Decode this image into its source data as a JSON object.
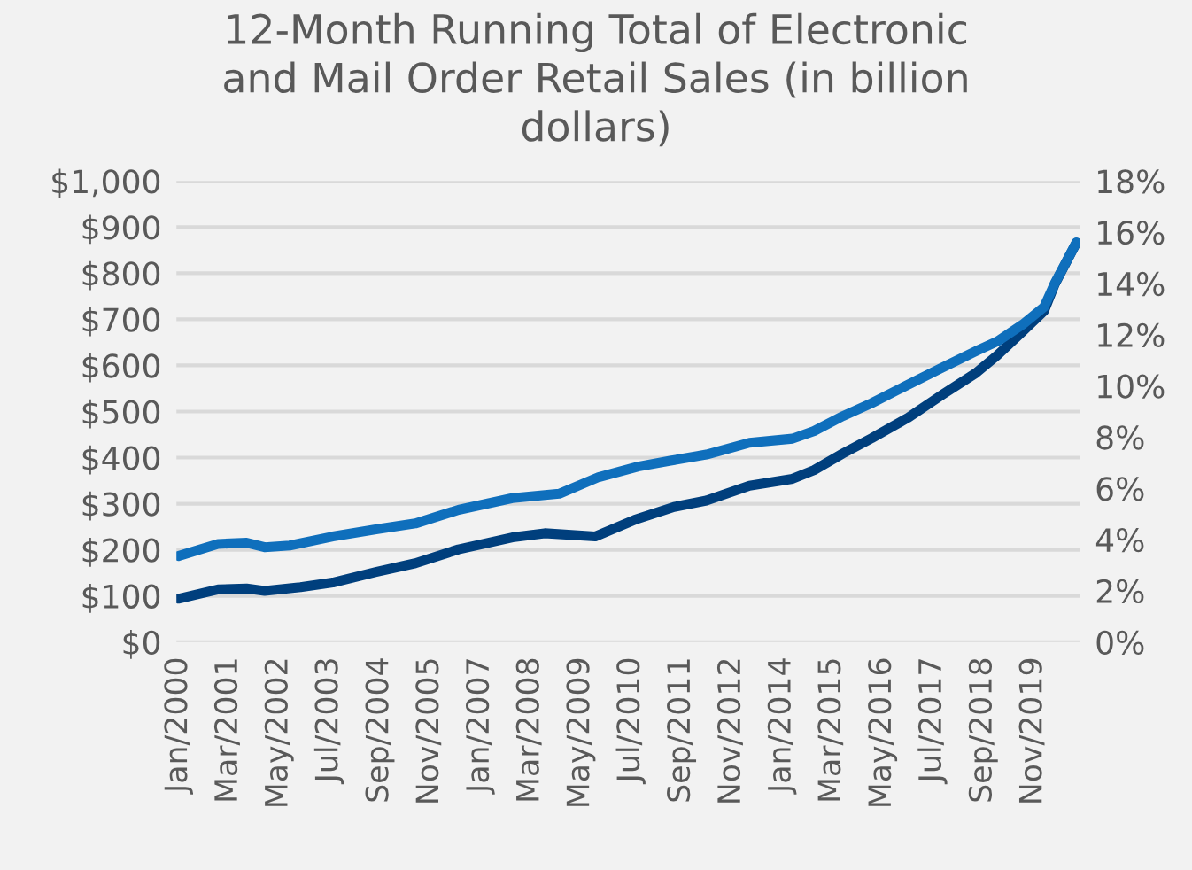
{
  "chart_data": {
    "type": "line",
    "title": "12-Month Running Total of Electronic\nand Mail Order Retail Sales (in billion\ndollars)",
    "series": [
      {
        "color": "#003f7d",
        "axis": "y",
        "x": [
          "2000-01",
          "2000-12",
          "2001-08",
          "2002-01",
          "2002-11",
          "2003-08",
          "2004-08",
          "2005-07",
          "2006-07",
          "2007-10",
          "2008-07",
          "2009-09",
          "2010-08",
          "2011-07",
          "2012-04",
          "2013-04",
          "2014-04",
          "2014-10",
          "2015-06",
          "2016-02",
          "2016-12",
          "2017-10",
          "2018-07",
          "2019-01",
          "2019-08",
          "2020-02",
          "2020-05",
          "2020-08",
          "2020-11"
        ],
        "values": [
          94,
          114,
          116,
          111,
          119,
          129,
          152,
          171,
          201,
          227,
          236,
          229,
          265,
          293,
          307,
          339,
          354,
          373,
          409,
          442,
          486,
          538,
          583,
          622,
          673,
          718,
          776,
          821,
          866
        ]
      },
      {
        "color": "#0f6fbc",
        "axis": "y2",
        "x": [
          "2000-01",
          "2000-12",
          "2001-08",
          "2002-01",
          "2002-08",
          "2003-08",
          "2004-08",
          "2005-07",
          "2006-07",
          "2007-10",
          "2008-11",
          "2009-10",
          "2010-09",
          "2011-06",
          "2012-04",
          "2013-04",
          "2014-04",
          "2014-10",
          "2015-06",
          "2016-02",
          "2016-11",
          "2017-09",
          "2018-07",
          "2019-01",
          "2019-08",
          "2020-02",
          "2020-05",
          "2020-08",
          "2020-11"
        ],
        "values": [
          3.36,
          3.83,
          3.88,
          3.7,
          3.77,
          4.12,
          4.4,
          4.63,
          5.16,
          5.62,
          5.79,
          6.44,
          6.85,
          7.08,
          7.32,
          7.78,
          7.94,
          8.24,
          8.82,
          9.33,
          9.97,
          10.67,
          11.35,
          11.74,
          12.39,
          13.08,
          14.0,
          14.8,
          15.6
        ]
      }
    ],
    "xlim": [
      "1999-12-15",
      "2020-12-01"
    ],
    "xticks": [
      {
        "value": "2000-01",
        "label": "Jan/2000"
      },
      {
        "value": "2001-03",
        "label": "Mar/2001"
      },
      {
        "value": "2002-05",
        "label": "May/2002"
      },
      {
        "value": "2003-07",
        "label": "Jul/2003"
      },
      {
        "value": "2004-09",
        "label": "Sep/2004"
      },
      {
        "value": "2005-11",
        "label": "Nov/2005"
      },
      {
        "value": "2007-01",
        "label": "Jan/2007"
      },
      {
        "value": "2008-03",
        "label": "Mar/2008"
      },
      {
        "value": "2009-05",
        "label": "May/2009"
      },
      {
        "value": "2010-07",
        "label": "Jul/2010"
      },
      {
        "value": "2011-09",
        "label": "Sep/2011"
      },
      {
        "value": "2012-11",
        "label": "Nov/2012"
      },
      {
        "value": "2014-01",
        "label": "Jan/2014"
      },
      {
        "value": "2015-03",
        "label": "Mar/2015"
      },
      {
        "value": "2016-05",
        "label": "May/2016"
      },
      {
        "value": "2017-07",
        "label": "Jul/2017"
      },
      {
        "value": "2018-09",
        "label": "Sep/2018"
      },
      {
        "value": "2019-11",
        "label": "Nov/2019"
      }
    ],
    "ylim": [
      0,
      1000
    ],
    "yticks": [
      {
        "value": 0,
        "label": "$0"
      },
      {
        "value": 100,
        "label": "$100"
      },
      {
        "value": 200,
        "label": "$200"
      },
      {
        "value": 300,
        "label": "$300"
      },
      {
        "value": 400,
        "label": "$400"
      },
      {
        "value": 500,
        "label": "$500"
      },
      {
        "value": 600,
        "label": "$600"
      },
      {
        "value": 700,
        "label": "$700"
      },
      {
        "value": 800,
        "label": "$800"
      },
      {
        "value": 900,
        "label": "$900"
      },
      {
        "value": 1000,
        "label": "$1,000"
      }
    ],
    "y2lim": [
      0,
      18
    ],
    "y2ticks": [
      {
        "value": 0,
        "label": "0%"
      },
      {
        "value": 2,
        "label": "2%"
      },
      {
        "value": 4,
        "label": "4%"
      },
      {
        "value": 6,
        "label": "6%"
      },
      {
        "value": 8,
        "label": "8%"
      },
      {
        "value": 10,
        "label": "10%"
      },
      {
        "value": 12,
        "label": "12%"
      },
      {
        "value": 14,
        "label": "14%"
      },
      {
        "value": 16,
        "label": "16%"
      },
      {
        "value": 18,
        "label": "18%"
      }
    ],
    "grid": "y",
    "legend": false,
    "marker": "none",
    "line_style": "solid"
  }
}
